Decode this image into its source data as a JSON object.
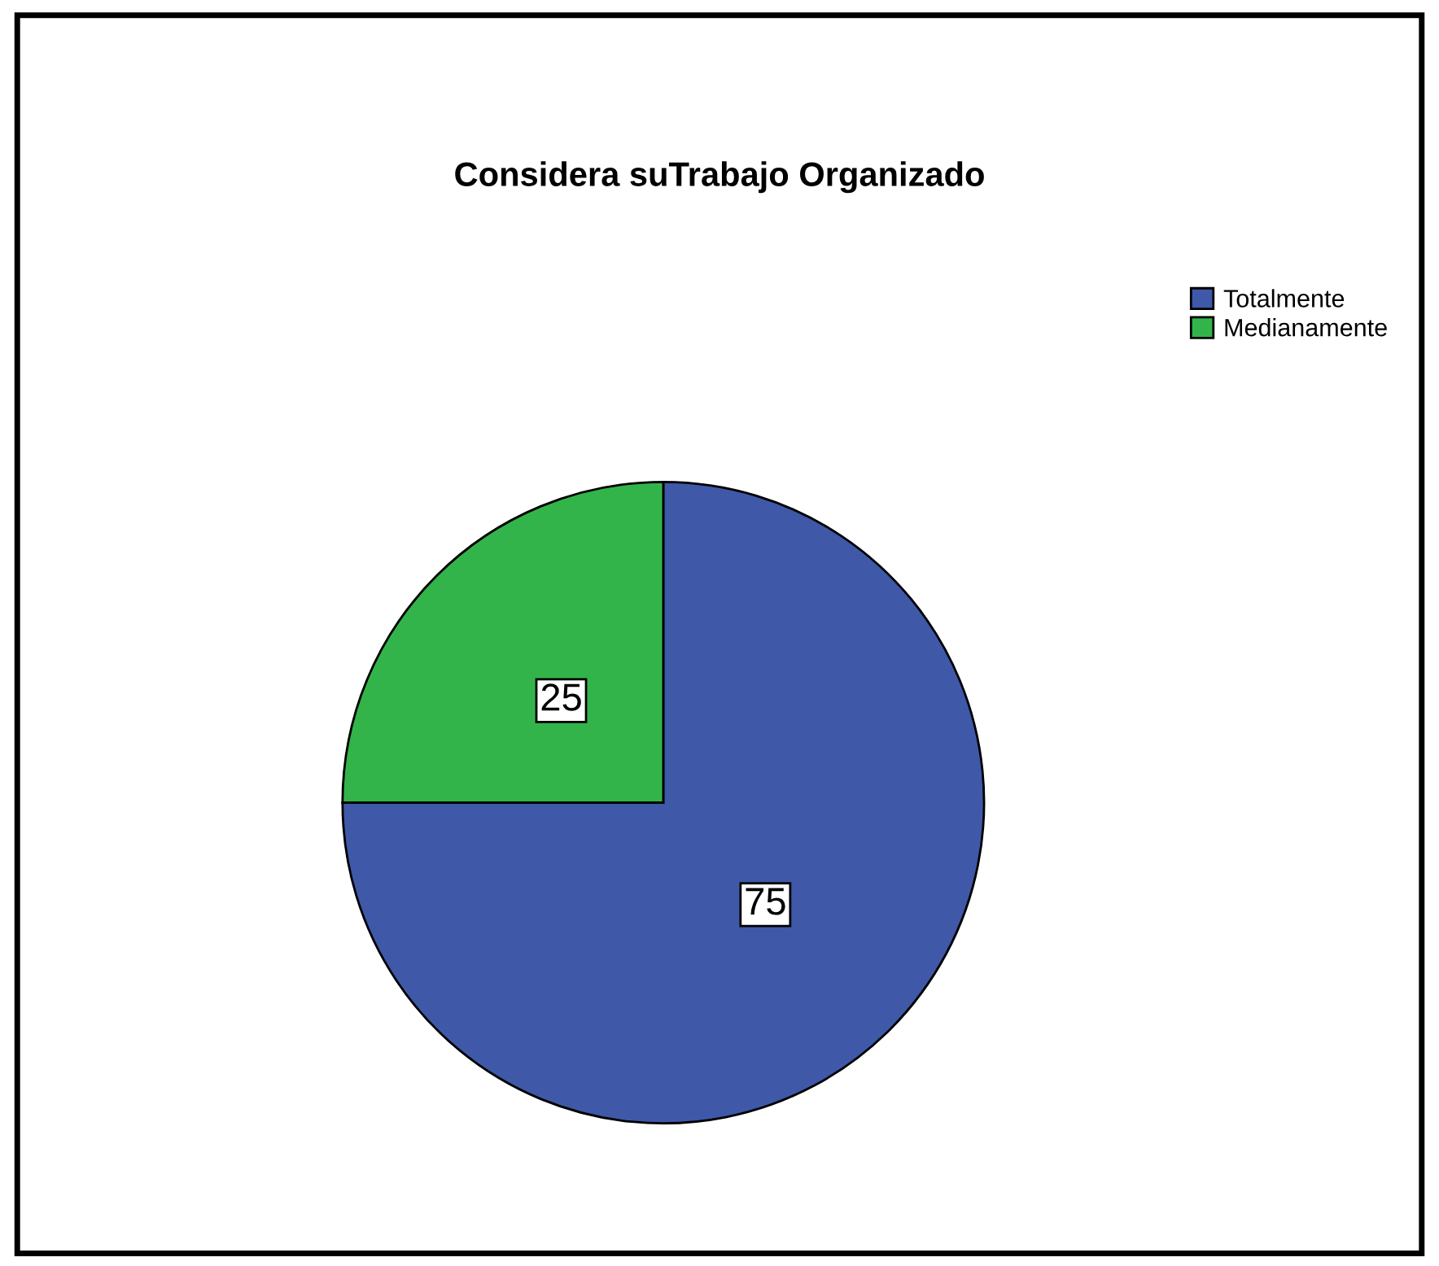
{
  "chart_data": {
    "type": "pie",
    "title": "Considera suTrabajo Organizado",
    "categories": [
      "Totalmente",
      "Medianamente"
    ],
    "values": [
      75,
      25
    ],
    "colors": [
      "#3f58a8",
      "#33b44a"
    ],
    "data_labels": true,
    "legend": "top right"
  }
}
